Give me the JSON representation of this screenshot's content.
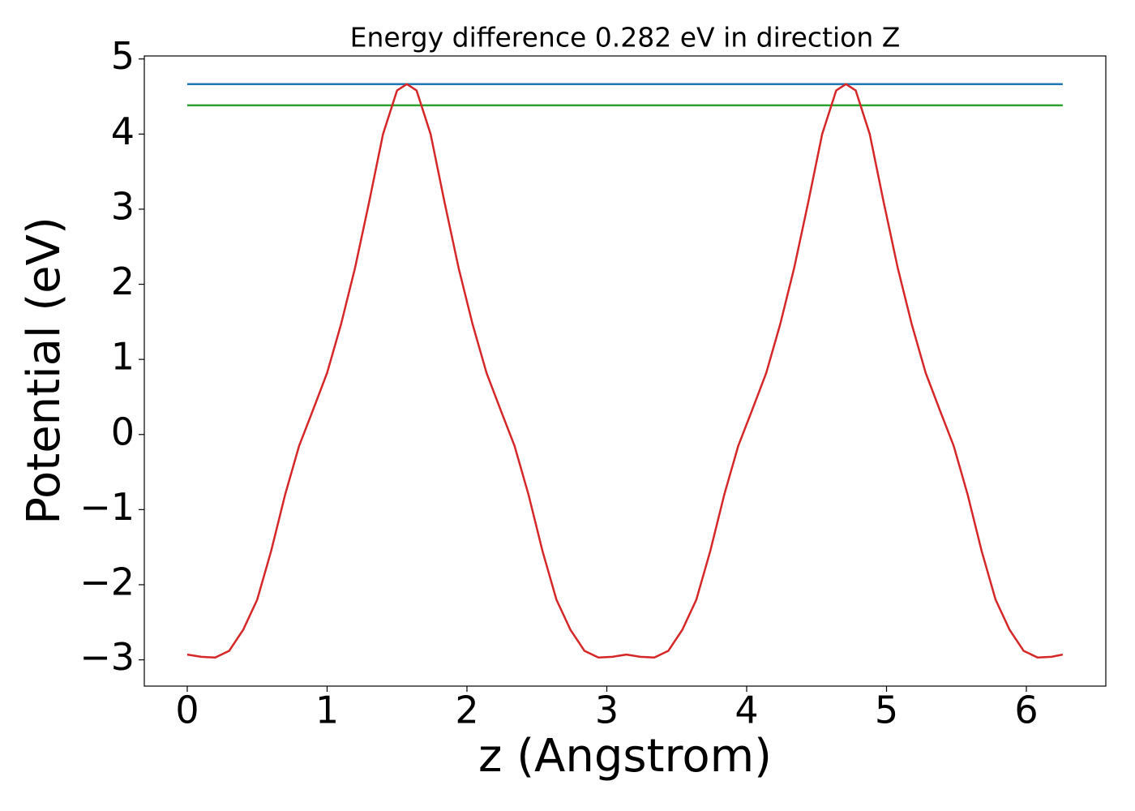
{
  "chart_data": {
    "type": "line",
    "title": "Energy difference 0.282 eV in direction Z",
    "xlabel": "z (Angstrom)",
    "ylabel": "Potential (eV)",
    "series": [
      {
        "color": "#1f77b4",
        "x": [
          0,
          6.26
        ],
        "values": [
          4.665,
          4.665
        ]
      },
      {
        "color": "#2ca02c",
        "x": [
          0,
          6.26
        ],
        "values": [
          4.383,
          4.383
        ]
      },
      {
        "color": "#d62728",
        "x": [
          0,
          0.1,
          0.2,
          0.3,
          0.4,
          0.5,
          0.6,
          0.7,
          0.8,
          0.9,
          1.0,
          1.1,
          1.2,
          1.3,
          1.4,
          1.5,
          1.57,
          1.64,
          1.74,
          1.84,
          1.94,
          2.04,
          2.14,
          2.24,
          2.34,
          2.44,
          2.54,
          2.64,
          2.74,
          2.84,
          2.94,
          3.04,
          3.14,
          3.24,
          3.34,
          3.44,
          3.54,
          3.64,
          3.74,
          3.84,
          3.94,
          4.04,
          4.14,
          4.24,
          4.34,
          4.44,
          4.54,
          4.64,
          4.71,
          4.78,
          4.88,
          4.98,
          5.08,
          5.18,
          5.28,
          5.38,
          5.48,
          5.58,
          5.68,
          5.78,
          5.88,
          5.98,
          6.08,
          6.18,
          6.26
        ],
        "values": [
          -2.93,
          -2.96,
          -2.97,
          -2.88,
          -2.6,
          -2.2,
          -1.55,
          -0.8,
          -0.15,
          0.33,
          0.82,
          1.47,
          2.22,
          3.09,
          4.0,
          4.58,
          4.665,
          4.58,
          4.0,
          3.09,
          2.22,
          1.47,
          0.82,
          0.33,
          -0.15,
          -0.8,
          -1.55,
          -2.2,
          -2.6,
          -2.88,
          -2.97,
          -2.96,
          -2.93,
          -2.96,
          -2.97,
          -2.88,
          -2.6,
          -2.2,
          -1.55,
          -0.8,
          -0.15,
          0.33,
          0.82,
          1.47,
          2.22,
          3.09,
          4.0,
          4.58,
          4.665,
          4.58,
          4.0,
          3.09,
          2.22,
          1.47,
          0.82,
          0.33,
          -0.15,
          -0.8,
          -1.55,
          -2.2,
          -2.6,
          -2.88,
          -2.97,
          -2.96,
          -2.93
        ]
      }
    ],
    "xlim": [
      -0.307,
      6.568
    ],
    "ylim": [
      -3.35,
      5.04
    ],
    "xticks": [
      0,
      1,
      2,
      3,
      4,
      5,
      6
    ],
    "yticks": [
      {
        "value": -3,
        "label": "−3"
      },
      {
        "value": -2,
        "label": "−2"
      },
      {
        "value": -1,
        "label": "−1"
      },
      0,
      1,
      2,
      3,
      4,
      5
    ]
  }
}
